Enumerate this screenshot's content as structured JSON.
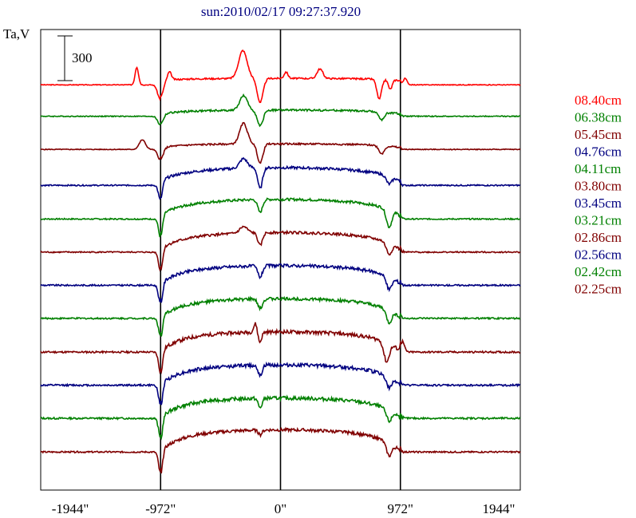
{
  "chart_data": {
    "type": "line",
    "title": "sun:2010/02/17 09:27:37.920",
    "ylabel": "Ta,V",
    "scale_bar_label": "300",
    "scale_bar_value": 300,
    "xlim": [
      -1944,
      1944
    ],
    "x_ticks": [
      -1944,
      -972,
      0,
      972,
      1944
    ],
    "x_tick_labels": [
      "-1944\"",
      "-972\"",
      "0\"",
      "972\"",
      "1944\""
    ],
    "vertical_lines": [
      -972,
      0,
      972
    ],
    "grid": false,
    "legend_placement": "right",
    "series": [
      {
        "name": "08.40cm",
        "color": "#ff0000",
        "dip_limb": 18,
        "dip_spot": 18,
        "hump": 35,
        "disk_hump": 2,
        "limb_dark": 2,
        "noise": 1.2,
        "features": [
          [
            -1165,
            9,
            22
          ],
          [
            -972,
            14,
            -20
          ],
          [
            -900,
            10,
            10
          ],
          [
            -305,
            22,
            35
          ],
          [
            -165,
            15,
            -30
          ],
          [
            45,
            10,
            8
          ],
          [
            320,
            15,
            12
          ],
          [
            800,
            12,
            -25
          ],
          [
            890,
            10,
            -12
          ],
          [
            1010,
            10,
            8
          ]
        ]
      },
      {
        "name": "06.38cm",
        "color": "#008000",
        "dip_limb": 12,
        "dip_spot": 18,
        "hump": 18,
        "disk_hump": 4,
        "limb_dark": 4,
        "noise": 1.5,
        "features": [
          [
            -972,
            14,
            -12
          ],
          [
            -165,
            15,
            -20
          ],
          [
            -300,
            20,
            18
          ],
          [
            820,
            14,
            -10
          ]
        ]
      },
      {
        "name": "05.45cm",
        "color": "#800000",
        "dip_limb": 12,
        "dip_spot": 24,
        "hump": 26,
        "disk_hump": 3,
        "limb_dark": 5,
        "noise": 1.3,
        "features": [
          [
            -1120,
            16,
            12
          ],
          [
            -972,
            14,
            -14
          ],
          [
            -300,
            20,
            26
          ],
          [
            -165,
            14,
            -24
          ],
          [
            820,
            14,
            -10
          ]
        ]
      },
      {
        "name": "04.76cm",
        "color": "#000080",
        "dip_limb": 22,
        "dip_spot": 26,
        "hump": 14,
        "disk_hump": 16,
        "limb_dark": 8,
        "noise": 2.0,
        "features": [
          [
            -972,
            10,
            -22
          ],
          [
            -165,
            12,
            -26
          ],
          [
            -300,
            20,
            12
          ],
          [
            880,
            14,
            -10
          ]
        ]
      },
      {
        "name": "04.11cm",
        "color": "#008000",
        "dip_limb": 24,
        "dip_spot": 16,
        "hump": 8,
        "disk_hump": 18,
        "limb_dark": 12,
        "noise": 2.0,
        "features": [
          [
            -972,
            10,
            -26
          ],
          [
            -165,
            12,
            -16
          ],
          [
            880,
            14,
            -22
          ]
        ]
      },
      {
        "name": "03.80cm",
        "color": "#800000",
        "dip_limb": 24,
        "dip_spot": 16,
        "hump": 10,
        "disk_hump": 18,
        "limb_dark": 14,
        "noise": 2.0,
        "features": [
          [
            -972,
            10,
            -26
          ],
          [
            -165,
            12,
            -16
          ],
          [
            -300,
            20,
            8
          ],
          [
            880,
            14,
            -14
          ]
        ]
      },
      {
        "name": "03.45cm",
        "color": "#000080",
        "dip_limb": 24,
        "dip_spot": 14,
        "hump": 6,
        "disk_hump": 18,
        "limb_dark": 16,
        "noise": 2.4,
        "features": [
          [
            -972,
            10,
            -26
          ],
          [
            -165,
            12,
            -14
          ],
          [
            880,
            14,
            -16
          ]
        ]
      },
      {
        "name": "03.21cm",
        "color": "#008000",
        "dip_limb": 24,
        "dip_spot": 12,
        "hump": 4,
        "disk_hump": 18,
        "limb_dark": 18,
        "noise": 2.4,
        "features": [
          [
            -972,
            10,
            -26
          ],
          [
            -165,
            12,
            -12
          ],
          [
            880,
            14,
            -16
          ]
        ]
      },
      {
        "name": "02.86cm",
        "color": "#800000",
        "dip_limb": 26,
        "dip_spot": 14,
        "hump": 4,
        "disk_hump": 18,
        "limb_dark": 20,
        "noise": 2.8,
        "features": [
          [
            -972,
            10,
            -28
          ],
          [
            -170,
            10,
            -14
          ],
          [
            -200,
            10,
            12
          ],
          [
            860,
            14,
            -24
          ],
          [
            990,
            10,
            12
          ]
        ]
      },
      {
        "name": "02.56cm",
        "color": "#000080",
        "dip_limb": 26,
        "dip_spot": 12,
        "hump": 4,
        "disk_hump": 18,
        "limb_dark": 20,
        "noise": 2.8,
        "features": [
          [
            -972,
            10,
            -28
          ],
          [
            -165,
            10,
            -14
          ],
          [
            880,
            14,
            -14
          ]
        ]
      },
      {
        "name": "02.42cm",
        "color": "#008000",
        "dip_limb": 26,
        "dip_spot": 12,
        "hump": 4,
        "disk_hump": 18,
        "limb_dark": 20,
        "noise": 2.8,
        "features": [
          [
            -972,
            10,
            -28
          ],
          [
            -165,
            10,
            -12
          ],
          [
            880,
            14,
            -14
          ]
        ]
      },
      {
        "name": "02.25cm",
        "color": "#800000",
        "dip_limb": 28,
        "dip_spot": 6,
        "hump": 2,
        "disk_hump": 20,
        "limb_dark": 22,
        "noise": 2.4,
        "features": [
          [
            -972,
            10,
            -30
          ],
          [
            -165,
            10,
            -6
          ],
          [
            880,
            14,
            -16
          ]
        ]
      }
    ]
  }
}
